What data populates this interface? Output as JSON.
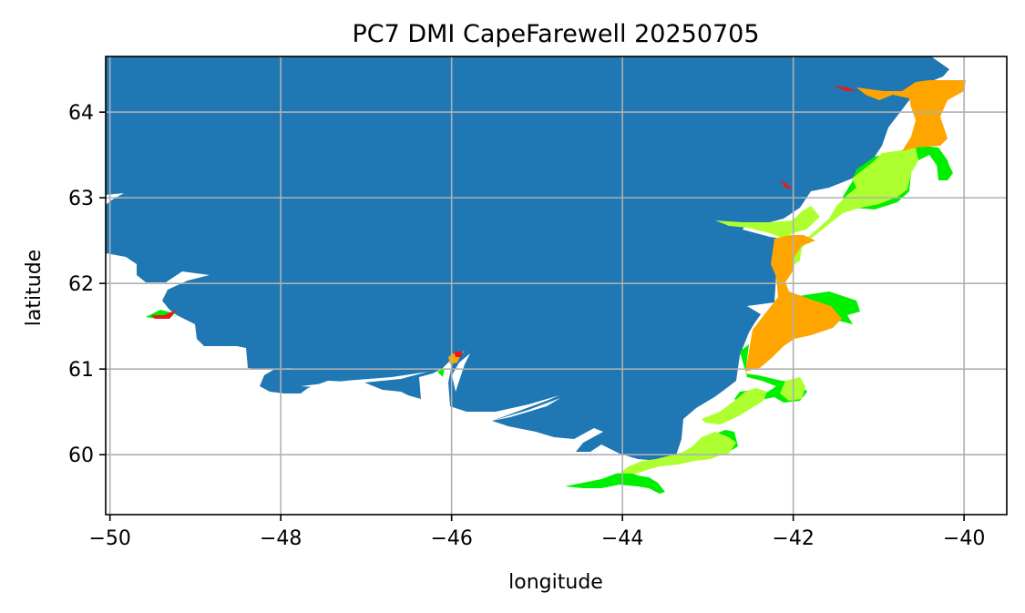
{
  "title": "PC7 DMI CapeFarewell 20250705",
  "xlabel": "longitude",
  "ylabel": "latitude",
  "colors": {
    "land": "#1f77b4",
    "grid": "#b0b0b0",
    "ice_red": "#e8191c",
    "ice_orange": "#ffa500",
    "ice_yellowgreen": "#adff2f",
    "ice_green": "#00ee00"
  },
  "chart_data": {
    "type": "map",
    "xlim": [
      -50.05,
      -39.5
    ],
    "ylim": [
      59.3,
      64.65
    ],
    "xticks": [
      -50,
      -48,
      -46,
      -44,
      -42,
      -40
    ],
    "yticks": [
      60,
      61,
      62,
      63,
      64
    ],
    "xtick_labels": [
      "−50",
      "−48",
      "−46",
      "−44",
      "−42",
      "−40"
    ],
    "ytick_labels": [
      "60",
      "61",
      "62",
      "63",
      "64"
    ],
    "grid": true
  }
}
